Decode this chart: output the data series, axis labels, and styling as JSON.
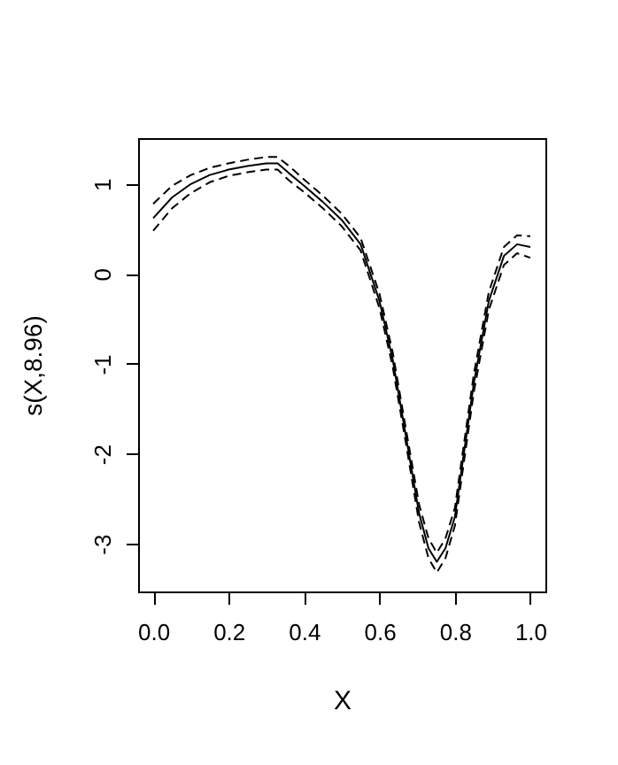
{
  "chart_data": {
    "type": "line",
    "xlabel": "X",
    "ylabel": "s(X,8.96)",
    "x": [
      0,
      0.05,
      0.1,
      0.15,
      0.2,
      0.25,
      0.3,
      0.33,
      0.36,
      0.4,
      0.45,
      0.5,
      0.55,
      0.6,
      0.635,
      0.67,
      0.705,
      0.73,
      0.752,
      0.775,
      0.8,
      0.85,
      0.89,
      0.93,
      0.965,
      1.0
    ],
    "series": [
      {
        "color": "#000000",
        "line_style": "solid",
        "values": [
          0.62,
          0.85,
          1.0,
          1.1,
          1.16,
          1.2,
          1.23,
          1.23,
          1.12,
          0.98,
          0.8,
          0.6,
          0.33,
          -0.3,
          -0.95,
          -1.8,
          -2.66,
          -3.05,
          -3.2,
          -3.05,
          -2.7,
          -1.22,
          -0.3,
          0.2,
          0.33,
          0.3
        ]
      },
      {
        "color": "#000000",
        "line_style": "dashed",
        "values": [
          0.78,
          0.98,
          1.1,
          1.18,
          1.23,
          1.27,
          1.3,
          1.3,
          1.2,
          1.05,
          0.87,
          0.67,
          0.4,
          -0.22,
          -0.87,
          -1.72,
          -2.56,
          -2.94,
          -3.1,
          -2.94,
          -2.6,
          -1.12,
          -0.2,
          0.3,
          0.43,
          0.42
        ]
      },
      {
        "color": "#000000",
        "line_style": "dashed",
        "values": [
          0.48,
          0.73,
          0.9,
          1.02,
          1.09,
          1.13,
          1.16,
          1.16,
          1.04,
          0.91,
          0.73,
          0.53,
          0.26,
          -0.38,
          -1.03,
          -1.88,
          -2.76,
          -3.16,
          -3.32,
          -3.16,
          -2.8,
          -1.32,
          -0.4,
          0.1,
          0.23,
          0.18
        ]
      }
    ],
    "xlim": [
      -0.04,
      1.04
    ],
    "ylim": [
      -3.53,
      1.51
    ],
    "xticks": [
      {
        "value": 0,
        "label": "0.0"
      },
      {
        "value": 0.2,
        "label": "0.2"
      },
      {
        "value": 0.4,
        "label": "0.4"
      },
      {
        "value": 0.6,
        "label": "0.6"
      },
      {
        "value": 0.8,
        "label": "0.8"
      },
      {
        "value": 1,
        "label": "1.0"
      }
    ],
    "yticks": [
      -3,
      -2,
      -1,
      0,
      1
    ],
    "grid": false,
    "marker": "none"
  }
}
